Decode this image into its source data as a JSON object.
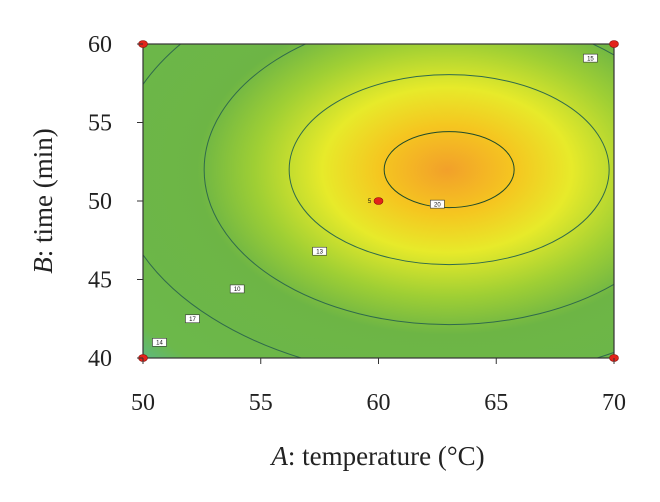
{
  "chart_data": {
    "type": "heatmap",
    "subtype": "contour",
    "x": {
      "factor": "A",
      "name": "temperature",
      "unit": "(°C)",
      "range": [
        50,
        70
      ],
      "ticks": [
        50,
        55,
        60,
        65,
        70
      ]
    },
    "y": {
      "factor": "B",
      "name": "time",
      "unit": "(min)",
      "range": [
        40,
        60
      ],
      "ticks": [
        40,
        45,
        50,
        55,
        60
      ]
    },
    "optimum": {
      "x": 63,
      "y": 52
    },
    "colormap": [
      "#2a1f8f",
      "#7ec6ee",
      "#6fb84a",
      "#7dbe3e",
      "#e7ea2a",
      "#f5c620",
      "#f2a02a"
    ],
    "contours": [
      {
        "label": "14",
        "x": 50.7,
        "y": 41.0
      },
      {
        "label": "17",
        "x": 52.1,
        "y": 42.5
      },
      {
        "label": "10",
        "x": 54.0,
        "y": 44.4
      },
      {
        "label": "13",
        "x": 57.5,
        "y": 46.8
      },
      {
        "label": "20",
        "x": 62.5,
        "y": 49.8
      },
      {
        "label": "15",
        "x": 69.0,
        "y": 59.1
      }
    ],
    "design_points": [
      {
        "x": 50,
        "y": 60,
        "label": ""
      },
      {
        "x": 70,
        "y": 60,
        "label": ""
      },
      {
        "x": 50,
        "y": 40,
        "label": ""
      },
      {
        "x": 70,
        "y": 40,
        "label": ""
      },
      {
        "x": 60,
        "y": 50,
        "label": "5"
      }
    ]
  }
}
